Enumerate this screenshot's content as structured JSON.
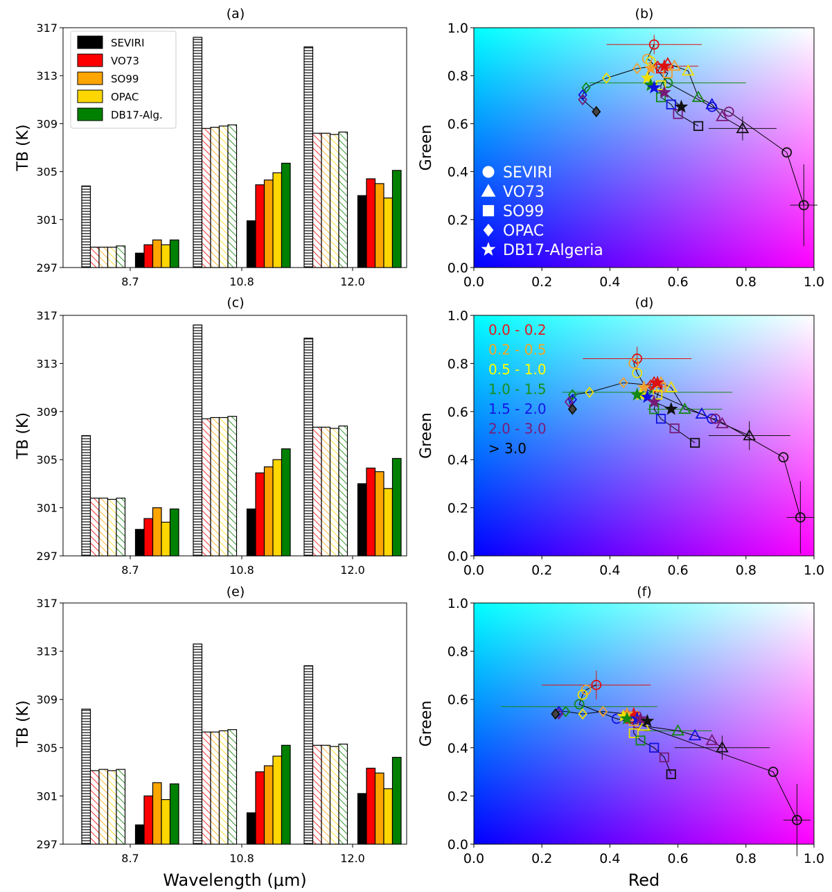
{
  "legend_bar": {
    "entries": [
      {
        "label": "SEVIRI",
        "color": "#000000"
      },
      {
        "label": "VO73",
        "color": "#ff0000"
      },
      {
        "label": "SO99",
        "color": "#ffa500"
      },
      {
        "label": "OPAC",
        "color": "#ffd700"
      },
      {
        "label": "DB17-Alg.",
        "color": "#008000"
      }
    ]
  },
  "legend_markers": {
    "entries": [
      {
        "label": "SEVIRI",
        "marker": "circle"
      },
      {
        "label": "VO73",
        "marker": "triangle"
      },
      {
        "label": "SO99",
        "marker": "square"
      },
      {
        "label": "OPAC",
        "marker": "diamond"
      },
      {
        "label": "DB17-Algeria",
        "marker": "star"
      }
    ]
  },
  "legend_ranges": {
    "entries": [
      {
        "label": "0.0 - 0.2",
        "color": "#e31a1c"
      },
      {
        "label": "0.2 - 0.5",
        "color": "#f5a623"
      },
      {
        "label": "0.5 - 1.0",
        "color": "#ffff00"
      },
      {
        "label": "1.0 - 1.5",
        "color": "#1a8f1a"
      },
      {
        "label": "1.5 - 2.0",
        "color": "#1515e6"
      },
      {
        "label": "2.0 - 3.0",
        "color": "#7a1a7a"
      },
      {
        "label": "> 3.0",
        "color": "#000000"
      }
    ]
  },
  "range_colors": [
    "#dd1111",
    "#f0a030",
    "#f0e000",
    "#138813",
    "#1111dd",
    "#771a77",
    "#111111"
  ],
  "chart_data": [
    {
      "type": "bar",
      "panel": "(a)",
      "categories": [
        "8.7",
        "10.8",
        "12.0"
      ],
      "ylabel": "TB (K)",
      "xlabel": "",
      "ylim": [
        297,
        317
      ],
      "yticks": [
        "297",
        "301",
        "305",
        "309",
        "313",
        "317"
      ],
      "series_names": [
        "SEVIRI",
        "VO73",
        "SO99",
        "OPAC",
        "DB17-Alg."
      ],
      "clear_sky": [
        [
          303.8,
          298.7,
          298.7,
          298.7,
          298.8
        ],
        [
          316.2,
          308.6,
          308.7,
          308.8,
          308.9
        ],
        [
          315.4,
          308.2,
          308.2,
          308.1,
          308.3
        ]
      ],
      "dusty": [
        [
          298.2,
          298.9,
          299.3,
          298.9,
          299.3
        ],
        [
          300.9,
          303.9,
          304.3,
          304.9,
          305.7
        ],
        [
          303.0,
          304.4,
          304.0,
          302.8,
          305.1
        ]
      ]
    },
    {
      "type": "bar",
      "panel": "(c)",
      "categories": [
        "8.7",
        "10.8",
        "12.0"
      ],
      "ylabel": "TB (K)",
      "xlabel": "",
      "ylim": [
        297,
        317
      ],
      "yticks": [
        "297",
        "301",
        "305",
        "309",
        "313",
        "317"
      ],
      "series_names": [
        "SEVIRI",
        "VO73",
        "SO99",
        "OPAC",
        "DB17-Alg."
      ],
      "clear_sky": [
        [
          307.0,
          301.8,
          301.8,
          301.7,
          301.8
        ],
        [
          316.2,
          308.4,
          308.5,
          308.5,
          308.6
        ],
        [
          315.1,
          307.7,
          307.7,
          307.6,
          307.8
        ]
      ],
      "dusty": [
        [
          299.2,
          300.1,
          301.0,
          299.8,
          300.9
        ],
        [
          300.9,
          303.9,
          304.4,
          305.0,
          305.9
        ],
        [
          303.0,
          304.3,
          304.0,
          302.6,
          305.1
        ]
      ]
    },
    {
      "type": "bar",
      "panel": "(e)",
      "categories": [
        "8.7",
        "10.8",
        "12.0"
      ],
      "ylabel": "TB (K)",
      "xlabel": "Wavelength (μm)",
      "ylim": [
        297,
        317
      ],
      "yticks": [
        "297",
        "301",
        "305",
        "309",
        "313",
        "317"
      ],
      "series_names": [
        "SEVIRI",
        "VO73",
        "SO99",
        "OPAC",
        "DB17-Alg."
      ],
      "clear_sky": [
        [
          308.2,
          303.1,
          303.2,
          303.1,
          303.2
        ],
        [
          313.6,
          306.3,
          306.3,
          306.4,
          306.5
        ],
        [
          311.8,
          305.2,
          305.2,
          305.1,
          305.3
        ]
      ],
      "dusty": [
        [
          298.6,
          301.0,
          302.1,
          300.7,
          302.0
        ],
        [
          299.6,
          303.0,
          303.5,
          304.3,
          305.2
        ],
        [
          301.2,
          303.3,
          302.9,
          301.6,
          304.2
        ]
      ]
    },
    {
      "type": "scatter",
      "panel": "(b)",
      "xlabel": "",
      "ylabel": "Green",
      "xlim": [
        0,
        1
      ],
      "ylim": [
        0,
        1
      ],
      "ticks": [
        "0.0",
        "0.2",
        "0.4",
        "0.6",
        "0.8",
        "1.0"
      ],
      "series": [
        {
          "marker": "circle",
          "path": true,
          "points": [
            [
              0.53,
              0.93
            ],
            [
              0.51,
              0.87
            ],
            [
              0.52,
              0.86
            ],
            [
              0.57,
              0.77
            ],
            [
              0.7,
              0.67
            ],
            [
              0.75,
              0.65
            ],
            [
              0.92,
              0.48
            ],
            [
              0.97,
              0.26
            ]
          ]
        },
        {
          "marker": "triangle",
          "path": true,
          "points": [
            [
              0.57,
              0.85
            ],
            [
              0.59,
              0.84
            ],
            [
              0.63,
              0.82
            ],
            [
              0.66,
              0.71
            ],
            [
              0.7,
              0.68
            ],
            [
              0.73,
              0.63
            ],
            [
              0.79,
              0.58
            ]
          ]
        },
        {
          "marker": "square",
          "path": true,
          "points": [
            [
              0.55,
              0.83
            ],
            [
              0.57,
              0.81
            ],
            [
              0.55,
              0.76
            ],
            [
              0.55,
              0.71
            ],
            [
              0.58,
              0.68
            ],
            [
              0.6,
              0.64
            ],
            [
              0.66,
              0.59
            ]
          ]
        },
        {
          "marker": "diamond",
          "path": true,
          "points": [
            [
              0.54,
              0.84
            ],
            [
              0.48,
              0.83
            ],
            [
              0.39,
              0.79
            ],
            [
              0.33,
              0.75
            ],
            [
              0.32,
              0.72
            ],
            [
              0.32,
              0.7
            ],
            [
              0.36,
              0.65
            ]
          ]
        },
        {
          "marker": "star",
          "path": true,
          "points": [
            [
              0.56,
              0.84
            ],
            [
              0.52,
              0.83
            ],
            [
              0.51,
              0.79
            ],
            [
              0.52,
              0.76
            ],
            [
              0.53,
              0.75
            ],
            [
              0.56,
              0.73
            ],
            [
              0.61,
              0.67
            ]
          ]
        }
      ],
      "errorbars": [
        {
          "x": 0.53,
          "y": 0.93,
          "xerr": 0.14,
          "yerr": 0.04,
          "color": 0
        },
        {
          "x": 0.57,
          "y": 0.77,
          "xerr": 0.23,
          "yerr": 0.0,
          "color": 3
        },
        {
          "x": 0.61,
          "y": 0.84,
          "xerr": 0.05,
          "yerr": 0.0,
          "color": 0
        },
        {
          "x": 0.79,
          "y": 0.58,
          "xerr": 0.1,
          "yerr": 0.05,
          "color": 6
        },
        {
          "x": 0.97,
          "y": 0.26,
          "xerr": 0.04,
          "yerr": 0.17,
          "color": 6
        }
      ]
    },
    {
      "type": "scatter",
      "panel": "(d)",
      "xlabel": "",
      "ylabel": "Green",
      "xlim": [
        0,
        1
      ],
      "ylim": [
        0,
        1
      ],
      "ticks": [
        "0.0",
        "0.2",
        "0.4",
        "0.6",
        "0.8",
        "1.0"
      ],
      "series": [
        {
          "marker": "circle",
          "path": true,
          "points": [
            [
              0.48,
              0.82
            ],
            [
              0.47,
              0.8
            ],
            [
              0.48,
              0.76
            ],
            [
              0.51,
              0.69
            ],
            [
              0.7,
              0.57
            ],
            [
              0.71,
              0.57
            ],
            [
              0.91,
              0.41
            ],
            [
              0.96,
              0.16
            ]
          ]
        },
        {
          "marker": "triangle",
          "path": true,
          "points": [
            [
              0.53,
              0.72
            ],
            [
              0.55,
              0.72
            ],
            [
              0.58,
              0.7
            ],
            [
              0.62,
              0.61
            ],
            [
              0.67,
              0.59
            ],
            [
              0.73,
              0.55
            ],
            [
              0.81,
              0.5
            ]
          ]
        },
        {
          "marker": "square",
          "path": true,
          "points": [
            [
              0.54,
              0.7
            ],
            [
              0.55,
              0.7
            ],
            [
              0.54,
              0.67
            ],
            [
              0.53,
              0.61
            ],
            [
              0.55,
              0.57
            ],
            [
              0.59,
              0.53
            ],
            [
              0.65,
              0.47
            ]
          ]
        },
        {
          "marker": "diamond",
          "path": true,
          "points": [
            [
              0.52,
              0.71
            ],
            [
              0.44,
              0.72
            ],
            [
              0.34,
              0.68
            ],
            [
              0.29,
              0.67
            ],
            [
              0.29,
              0.65
            ],
            [
              0.28,
              0.64
            ],
            [
              0.29,
              0.61
            ]
          ]
        },
        {
          "marker": "star",
          "path": true,
          "points": [
            [
              0.54,
              0.72
            ],
            [
              0.5,
              0.7
            ],
            [
              0.49,
              0.67
            ],
            [
              0.48,
              0.67
            ],
            [
              0.51,
              0.66
            ],
            [
              0.53,
              0.64
            ],
            [
              0.58,
              0.61
            ]
          ]
        }
      ],
      "errorbars": [
        {
          "x": 0.48,
          "y": 0.82,
          "xerr": 0.16,
          "yerr": 0.05,
          "color": 0
        },
        {
          "x": 0.51,
          "y": 0.68,
          "xerr": 0.25,
          "yerr": 0.0,
          "color": 3
        },
        {
          "x": 0.62,
          "y": 0.61,
          "xerr": 0.11,
          "yerr": 0.0,
          "color": 3
        },
        {
          "x": 0.81,
          "y": 0.5,
          "xerr": 0.12,
          "yerr": 0.06,
          "color": 6
        },
        {
          "x": 0.96,
          "y": 0.16,
          "xerr": 0.04,
          "yerr": 0.15,
          "color": 6
        }
      ]
    },
    {
      "type": "scatter",
      "panel": "(f)",
      "xlabel": "Red",
      "ylabel": "Green",
      "xlim": [
        0,
        1
      ],
      "ylim": [
        0,
        1
      ],
      "ticks": [
        "0.0",
        "0.2",
        "0.4",
        "0.6",
        "0.8",
        "1.0"
      ],
      "series": [
        {
          "marker": "circle",
          "path": true,
          "points": [
            [
              0.36,
              0.66
            ],
            [
              0.33,
              0.64
            ],
            [
              0.32,
              0.62
            ],
            [
              0.31,
              0.58
            ],
            [
              0.42,
              0.52
            ],
            [
              0.48,
              0.5
            ],
            [
              0.88,
              0.3
            ],
            [
              0.95,
              0.1
            ]
          ]
        },
        {
          "marker": "triangle",
          "path": true,
          "points": [
            [
              0.47,
              0.53
            ],
            [
              0.48,
              0.53
            ],
            [
              0.5,
              0.49
            ],
            [
              0.6,
              0.47
            ],
            [
              0.65,
              0.45
            ],
            [
              0.7,
              0.43
            ],
            [
              0.73,
              0.4
            ]
          ]
        },
        {
          "marker": "square",
          "path": true,
          "points": [
            [
              0.46,
              0.52
            ],
            [
              0.47,
              0.51
            ],
            [
              0.47,
              0.46
            ],
            [
              0.49,
              0.43
            ],
            [
              0.53,
              0.4
            ],
            [
              0.56,
              0.36
            ],
            [
              0.58,
              0.29
            ]
          ]
        },
        {
          "marker": "diamond",
          "path": true,
          "points": [
            [
              0.45,
              0.54
            ],
            [
              0.38,
              0.55
            ],
            [
              0.32,
              0.54
            ],
            [
              0.27,
              0.55
            ],
            [
              0.25,
              0.55
            ],
            [
              0.25,
              0.54
            ],
            [
              0.24,
              0.54
            ]
          ]
        },
        {
          "marker": "star",
          "path": true,
          "points": [
            [
              0.47,
              0.54
            ],
            [
              0.45,
              0.54
            ],
            [
              0.44,
              0.53
            ],
            [
              0.45,
              0.52
            ],
            [
              0.48,
              0.52
            ],
            [
              0.49,
              0.52
            ],
            [
              0.51,
              0.51
            ]
          ]
        }
      ],
      "errorbars": [
        {
          "x": 0.36,
          "y": 0.66,
          "xerr": 0.16,
          "yerr": 0.06,
          "color": 0
        },
        {
          "x": 0.31,
          "y": 0.57,
          "xerr": 0.23,
          "yerr": 0.0,
          "color": 3
        },
        {
          "x": 0.6,
          "y": 0.47,
          "xerr": 0.1,
          "yerr": 0.0,
          "color": 3
        },
        {
          "x": 0.73,
          "y": 0.4,
          "xerr": 0.14,
          "yerr": 0.05,
          "color": 6
        },
        {
          "x": 0.95,
          "y": 0.1,
          "xerr": 0.04,
          "yerr": 0.15,
          "color": 6
        }
      ]
    }
  ]
}
